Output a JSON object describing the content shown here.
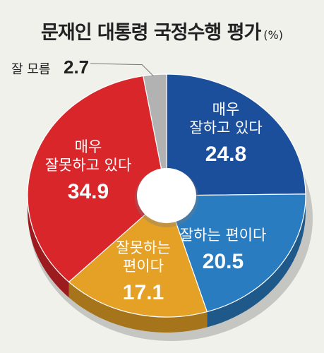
{
  "chart_data": {
    "type": "pie",
    "title": "문재인 대통령 국정수행 평가",
    "unit": "(%)",
    "slices": [
      {
        "label_lines": [
          "매우",
          "잘하고 있다"
        ],
        "value": 24.8,
        "value_text": "24.8",
        "color": "#1b4f9c"
      },
      {
        "label_lines": [
          "잘하는 편이다"
        ],
        "value": 20.5,
        "value_text": "20.5",
        "color": "#2a7cc0"
      },
      {
        "label_lines": [
          "잘못하는",
          "편이다"
        ],
        "value": 17.1,
        "value_text": "17.1",
        "color": "#e5a125"
      },
      {
        "label_lines": [
          "매우",
          "잘못하고 있다"
        ],
        "value": 34.9,
        "value_text": "34.9",
        "color": "#d9262b"
      },
      {
        "label_lines": [
          "잘 모름"
        ],
        "value": 2.7,
        "value_text": "2.7",
        "color": "#b2b2b2"
      }
    ]
  }
}
